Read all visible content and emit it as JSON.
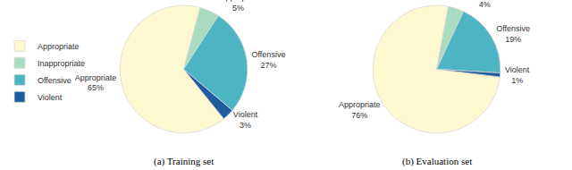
{
  "chart_data": [
    {
      "type": "pie",
      "title": "(a) Training set",
      "categories": [
        "Appropriate",
        "Inappropriate",
        "Offensive",
        "Violent"
      ],
      "values": [
        65,
        5,
        27,
        3
      ],
      "value_labels": [
        "65%",
        "5%",
        "27%",
        "3%"
      ],
      "colors": [
        "#fdf8cf",
        "#a9dcc1",
        "#4cb4c2",
        "#1f5c9e"
      ],
      "data_labels": true,
      "legend": "left"
    },
    {
      "type": "pie",
      "title": "(b) Evaluation set",
      "categories": [
        "Appropriate",
        "Inappropriate",
        "Offensive",
        "Violent"
      ],
      "values": [
        76,
        4,
        19,
        1
      ],
      "value_labels": [
        "76%",
        "4%",
        "19%",
        "1%"
      ],
      "colors": [
        "#fdf8cf",
        "#a9dcc1",
        "#4cb4c2",
        "#1f5c9e"
      ],
      "data_labels": true
    }
  ]
}
